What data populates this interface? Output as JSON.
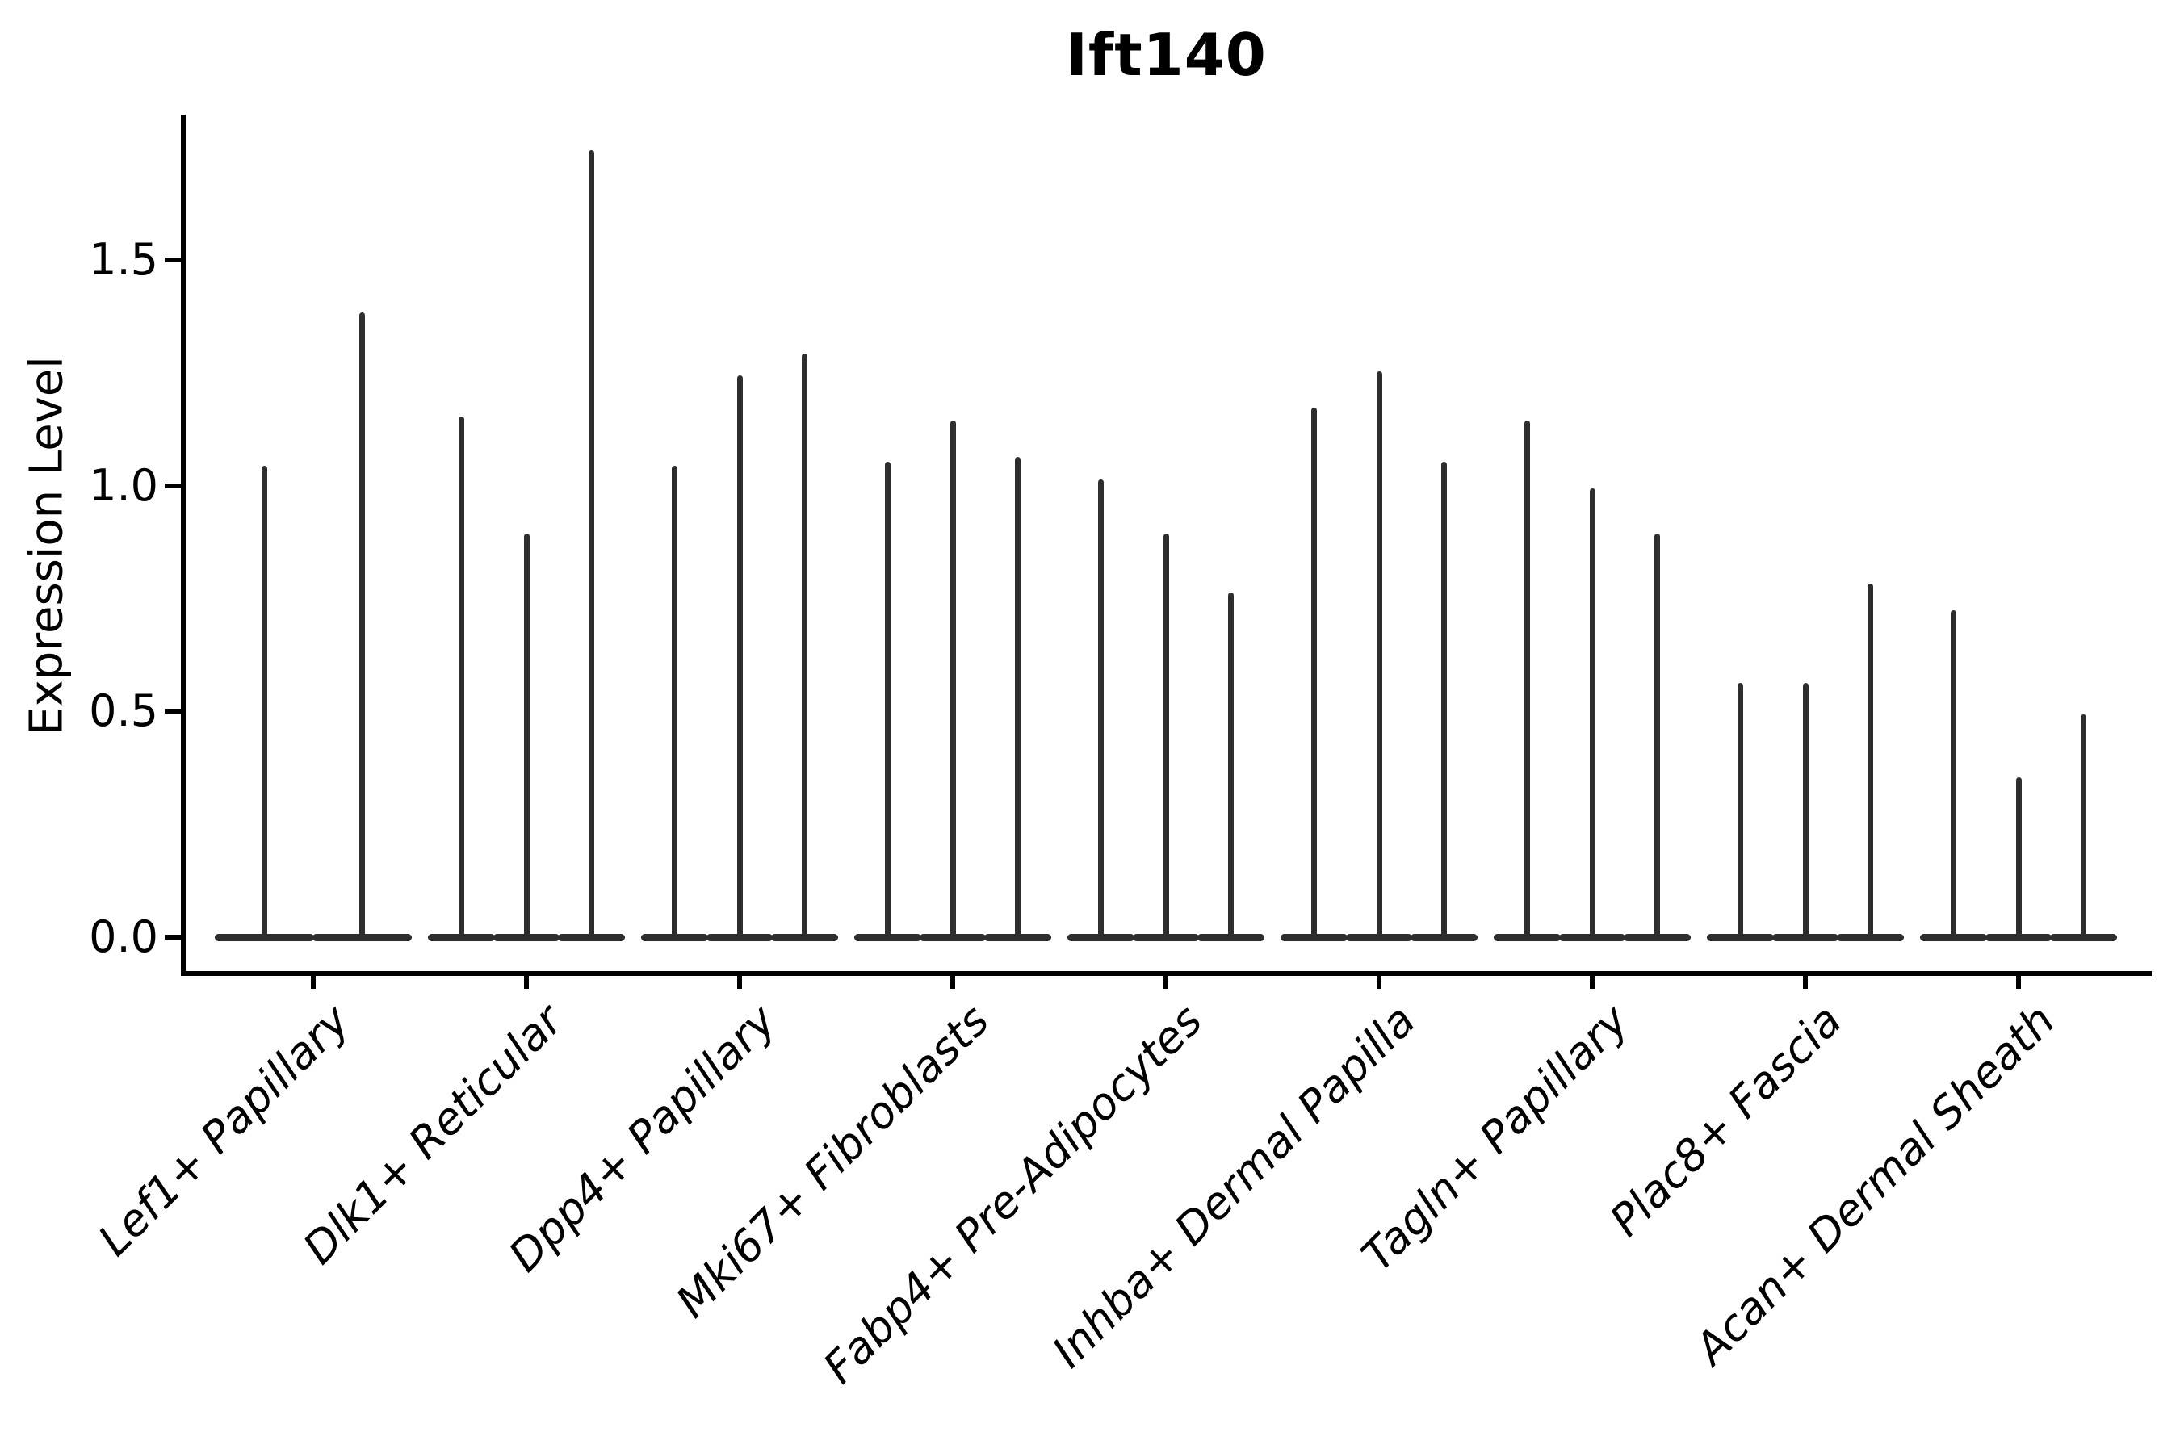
{
  "title": "Ift140",
  "axes": {
    "ylabel": "Expression Level",
    "ytick_labels": [
      "0.0",
      "0.5",
      "1.0",
      "1.5"
    ]
  },
  "colors": {
    "violin": "#2e2e2e",
    "axis": "#000000",
    "text": "#000000",
    "background": "#ffffff"
  },
  "chart_data": {
    "type": "violin",
    "title": "Ift140",
    "xlabel": "",
    "ylabel": "Expression Level",
    "ylim": [
      -0.09,
      1.82
    ],
    "yticks": [
      0.0,
      0.5,
      1.0,
      1.5
    ],
    "grid": false,
    "legend_position": "none",
    "baseline_value": 0.0,
    "description": "Single-cell expression violin plot; each category shows 2-3 very thin violins (split violins) collapsed at 0 with narrow spikes up to the maximum expression value.",
    "categories": [
      "Lef1+ Papillary",
      "Dlk1+ Reticular",
      "Dpp4+ Papillary",
      "Mki67+ Fibroblasts",
      "Fabp4+ Pre-Adipocytes",
      "Inhba+ Dermal Papilla",
      "Tagln+ Papillary",
      "Plac8+ Fascia",
      "Acan+ Dermal Sheath"
    ],
    "groups": [
      {
        "category": "Lef1+ Papillary",
        "violin_maxima": [
          1.04,
          1.38
        ]
      },
      {
        "category": "Dlk1+ Reticular",
        "violin_maxima": [
          1.15,
          0.89,
          1.74
        ]
      },
      {
        "category": "Dpp4+ Papillary",
        "violin_maxima": [
          1.04,
          1.24,
          1.29
        ]
      },
      {
        "category": "Mki67+ Fibroblasts",
        "violin_maxima": [
          1.05,
          1.14,
          1.06
        ]
      },
      {
        "category": "Fabp4+ Pre-Adipocytes",
        "violin_maxima": [
          1.01,
          0.89,
          0.76
        ]
      },
      {
        "category": "Inhba+ Dermal Papilla",
        "violin_maxima": [
          1.17,
          1.25,
          1.05
        ]
      },
      {
        "category": "Tagln+ Papillary",
        "violin_maxima": [
          1.14,
          0.99,
          0.89
        ]
      },
      {
        "category": "Plac8+ Fascia",
        "violin_maxima": [
          0.56,
          0.56,
          0.78
        ]
      },
      {
        "category": "Acan+ Dermal Sheath",
        "violin_maxima": [
          0.72,
          0.35,
          0.49
        ]
      }
    ]
  }
}
